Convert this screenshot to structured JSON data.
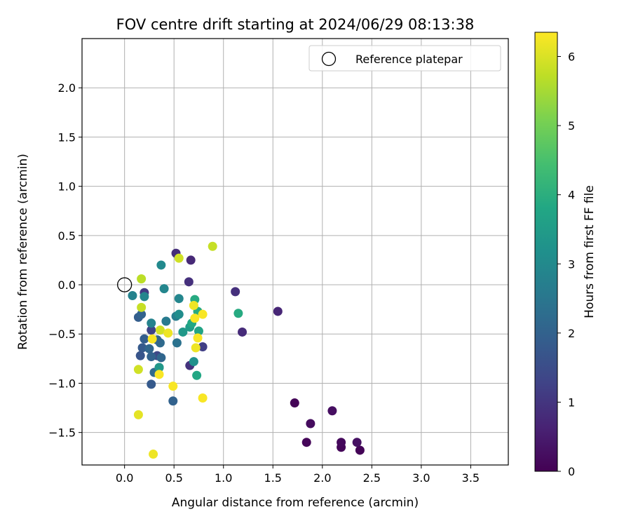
{
  "chart_data": {
    "type": "scatter",
    "title": "FOV centre drift starting at 2024/06/29 08:13:38",
    "xlabel": "Angular distance from reference (arcmin)",
    "ylabel": "Rotation from reference (arcmin)",
    "xlim": [
      -0.43,
      3.88
    ],
    "ylim": [
      -1.83,
      2.5
    ],
    "xticks": [
      "0.0",
      "0.5",
      "1.0",
      "1.5",
      "2.0",
      "2.5",
      "3.0",
      "3.5"
    ],
    "xtick_values": [
      0,
      0.5,
      1.0,
      1.5,
      2.0,
      2.5,
      3.0,
      3.5
    ],
    "yticks": [
      "−1.5",
      "−1.0",
      "−0.5",
      "0.0",
      "0.5",
      "1.0",
      "1.5",
      "2.0"
    ],
    "ytick_values": [
      -1.5,
      -1.0,
      -0.5,
      0,
      0.5,
      1.0,
      1.5,
      2.0
    ],
    "grid": true,
    "legend": {
      "position": "top-right",
      "label": "Reference platepar"
    },
    "reference_point": {
      "x": 0.0,
      "y": 0.0
    },
    "colorbar": {
      "label": "Hours from first FF file",
      "min": 0,
      "max": 6.35,
      "ticks": [
        "0",
        "1",
        "2",
        "3",
        "4",
        "5",
        "6"
      ],
      "tick_values": [
        0,
        1,
        2,
        3,
        4,
        5,
        6
      ],
      "colormap": "viridis"
    },
    "points": [
      {
        "x": 2.38,
        "y": -1.68,
        "h": 0.05
      },
      {
        "x": 2.19,
        "y": -1.65,
        "h": 0.1
      },
      {
        "x": 2.35,
        "y": -1.6,
        "h": 0.3
      },
      {
        "x": 2.19,
        "y": -1.6,
        "h": 0.15
      },
      {
        "x": 1.84,
        "y": -1.6,
        "h": 0.1
      },
      {
        "x": 1.88,
        "y": -1.41,
        "h": 0.2
      },
      {
        "x": 2.1,
        "y": -1.28,
        "h": 0.25
      },
      {
        "x": 1.72,
        "y": -1.2,
        "h": 0.05
      },
      {
        "x": 1.55,
        "y": -0.27,
        "h": 0.7
      },
      {
        "x": 1.19,
        "y": -0.48,
        "h": 0.8
      },
      {
        "x": 1.12,
        "y": -0.07,
        "h": 0.9
      },
      {
        "x": 0.52,
        "y": 0.32,
        "h": 0.85
      },
      {
        "x": 0.67,
        "y": 0.25,
        "h": 0.75
      },
      {
        "x": 0.65,
        "y": 0.03,
        "h": 0.9
      },
      {
        "x": 0.66,
        "y": -0.82,
        "h": 0.95
      },
      {
        "x": 0.79,
        "y": -0.63,
        "h": 1.2
      },
      {
        "x": 0.2,
        "y": -0.08,
        "h": 1.1
      },
      {
        "x": 0.27,
        "y": -0.46,
        "h": 1.3
      },
      {
        "x": 0.33,
        "y": -0.72,
        "h": 1.4
      },
      {
        "x": 0.18,
        "y": -0.64,
        "h": 1.8
      },
      {
        "x": 0.16,
        "y": -0.72,
        "h": 1.7
      },
      {
        "x": 0.14,
        "y": -0.33,
        "h": 1.9
      },
      {
        "x": 0.17,
        "y": -0.3,
        "h": 2.0
      },
      {
        "x": 0.2,
        "y": -0.55,
        "h": 1.9
      },
      {
        "x": 0.25,
        "y": -0.65,
        "h": 2.1
      },
      {
        "x": 0.27,
        "y": -0.73,
        "h": 2.0
      },
      {
        "x": 0.27,
        "y": -1.01,
        "h": 1.8
      },
      {
        "x": 0.49,
        "y": -1.18,
        "h": 2.0
      },
      {
        "x": 0.3,
        "y": -0.89,
        "h": 2.2
      },
      {
        "x": 0.35,
        "y": -0.84,
        "h": 2.3
      },
      {
        "x": 0.37,
        "y": -0.74,
        "h": 2.1
      },
      {
        "x": 0.36,
        "y": -0.59,
        "h": 2.2
      },
      {
        "x": 0.33,
        "y": -0.56,
        "h": 2.1
      },
      {
        "x": 0.53,
        "y": -0.59,
        "h": 2.4
      },
      {
        "x": 0.42,
        "y": -0.37,
        "h": 2.6
      },
      {
        "x": 0.27,
        "y": -0.39,
        "h": 2.8
      },
      {
        "x": 0.2,
        "y": -0.12,
        "h": 2.9
      },
      {
        "x": 0.08,
        "y": -0.11,
        "h": 2.8
      },
      {
        "x": 0.37,
        "y": 0.2,
        "h": 3.0
      },
      {
        "x": 0.4,
        "y": -0.04,
        "h": 2.9
      },
      {
        "x": 0.55,
        "y": -0.14,
        "h": 2.9
      },
      {
        "x": 0.52,
        "y": -0.32,
        "h": 2.7
      },
      {
        "x": 0.55,
        "y": -0.3,
        "h": 3.1
      },
      {
        "x": 0.59,
        "y": -0.48,
        "h": 3.4
      },
      {
        "x": 0.66,
        "y": -0.43,
        "h": 3.5
      },
      {
        "x": 0.7,
        "y": -0.78,
        "h": 3.2
      },
      {
        "x": 0.71,
        "y": -0.15,
        "h": 3.9
      },
      {
        "x": 0.74,
        "y": -0.27,
        "h": 3.9
      },
      {
        "x": 0.68,
        "y": -0.39,
        "h": 3.8
      },
      {
        "x": 0.75,
        "y": -0.47,
        "h": 3.7
      },
      {
        "x": 0.73,
        "y": -0.92,
        "h": 3.8
      },
      {
        "x": 1.15,
        "y": -0.29,
        "h": 3.9
      },
      {
        "x": 0.35,
        "y": -0.84,
        "h": 3.4
      },
      {
        "x": 0.89,
        "y": 0.39,
        "h": 5.8
      },
      {
        "x": 0.55,
        "y": 0.27,
        "h": 5.9
      },
      {
        "x": 0.17,
        "y": 0.06,
        "h": 5.7
      },
      {
        "x": 0.17,
        "y": -0.23,
        "h": 5.8
      },
      {
        "x": 0.36,
        "y": -0.46,
        "h": 5.9
      },
      {
        "x": 0.14,
        "y": -0.86,
        "h": 5.9
      },
      {
        "x": 0.14,
        "y": -1.32,
        "h": 6.1
      },
      {
        "x": 0.29,
        "y": -1.72,
        "h": 6.2
      },
      {
        "x": 0.35,
        "y": -0.91,
        "h": 6.3
      },
      {
        "x": 0.49,
        "y": -1.03,
        "h": 6.3
      },
      {
        "x": 0.79,
        "y": -1.15,
        "h": 6.3
      },
      {
        "x": 0.28,
        "y": -0.55,
        "h": 6.3
      },
      {
        "x": 0.44,
        "y": -0.49,
        "h": 6.2
      },
      {
        "x": 0.7,
        "y": -0.21,
        "h": 6.2
      },
      {
        "x": 0.71,
        "y": -0.34,
        "h": 6.3
      },
      {
        "x": 0.79,
        "y": -0.3,
        "h": 6.3
      },
      {
        "x": 0.74,
        "y": -0.54,
        "h": 6.3
      },
      {
        "x": 0.72,
        "y": -0.64,
        "h": 6.2
      }
    ]
  }
}
